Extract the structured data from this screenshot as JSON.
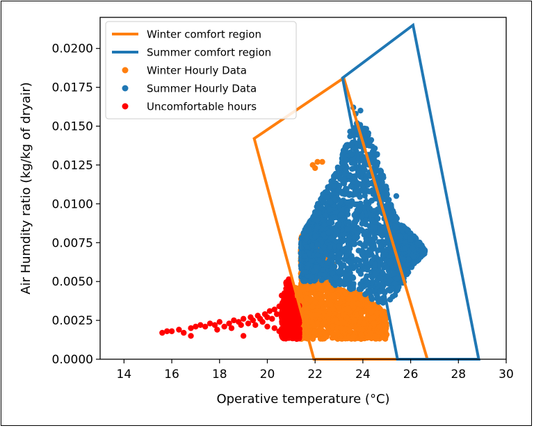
{
  "chart_data": {
    "type": "scatter",
    "title": "",
    "xlabel": "Operative temperature (",
    "xlabel_unit": "°C",
    "xlabel_close": ")",
    "ylabel": "Air Humdity ratio (kg/kg of dryair)",
    "xlim": [
      13,
      30
    ],
    "ylim": [
      0,
      0.022
    ],
    "xticks": [
      "14",
      "16",
      "18",
      "20",
      "22",
      "24",
      "26",
      "28",
      "30"
    ],
    "yticks": [
      "0.0000",
      "0.0025",
      "0.0050",
      "0.0075",
      "0.0100",
      "0.0125",
      "0.0150",
      "0.0175",
      "0.0200"
    ],
    "grid": false,
    "legend_position": "top-left",
    "colors": {
      "winter": "#ff7f0e",
      "summer": "#1f77b4",
      "uncomfortable": "#ff0000"
    },
    "series": [
      {
        "name": "Winter comfort region",
        "kind": "polygon",
        "points": [
          [
            19.45,
            0.0142
          ],
          [
            23.2,
            0.0181
          ],
          [
            26.7,
            0.0
          ],
          [
            21.95,
            0.0
          ]
        ]
      },
      {
        "name": "Summer comfort region",
        "kind": "polygon",
        "points": [
          [
            23.15,
            0.0181
          ],
          [
            26.1,
            0.0215
          ],
          [
            28.85,
            0.0
          ],
          [
            25.45,
            0.0
          ]
        ]
      },
      {
        "name": "Winter Hourly Data",
        "kind": "scatter",
        "regions": [
          {
            "x": [
              21.0,
              25.0
            ],
            "y_top_at": [
              [
                21.0,
                0.0045
              ],
              [
                22.0,
                0.0052
              ],
              [
                23.0,
                0.0045
              ],
              [
                24.0,
                0.0042
              ],
              [
                25.0,
                0.003
              ]
            ],
            "y_bottom": 0.0013
          },
          {
            "x": [
              21.4,
              22.8
            ],
            "y_top_at": [
              [
                21.4,
                0.0082
              ],
              [
                22.0,
                0.008
              ],
              [
                22.8,
                0.006
              ]
            ],
            "y_bottom": 0.0045
          }
        ],
        "extra_points": [
          [
            21.9,
            0.0125
          ],
          [
            22.1,
            0.0127
          ],
          [
            22.3,
            0.0127
          ],
          [
            22.0,
            0.0123
          ],
          [
            24.7,
            0.0021
          ],
          [
            24.9,
            0.0025
          ],
          [
            24.6,
            0.003
          ],
          [
            24.8,
            0.0018
          ]
        ]
      },
      {
        "name": "Summer Hourly Data",
        "kind": "scatter",
        "profile": [
          [
            21.4,
            0.005,
            0.0078
          ],
          [
            21.8,
            0.005,
            0.009
          ],
          [
            22.2,
            0.005,
            0.0103
          ],
          [
            22.6,
            0.005,
            0.0113
          ],
          [
            23.0,
            0.0045,
            0.0125
          ],
          [
            23.4,
            0.0045,
            0.0145
          ],
          [
            23.8,
            0.0042,
            0.0155
          ],
          [
            24.1,
            0.004,
            0.015
          ],
          [
            24.4,
            0.0037,
            0.014
          ],
          [
            24.7,
            0.0035,
            0.0128
          ],
          [
            25.0,
            0.0036,
            0.011
          ],
          [
            25.3,
            0.004,
            0.0095
          ],
          [
            25.6,
            0.0045,
            0.0087
          ],
          [
            25.9,
            0.0055,
            0.0083
          ],
          [
            26.1,
            0.006,
            0.008
          ],
          [
            26.4,
            0.0065,
            0.0075
          ],
          [
            26.6,
            0.0068,
            0.007
          ]
        ],
        "extra_points": [
          [
            23.6,
            0.0162
          ],
          [
            23.7,
            0.0158
          ],
          [
            23.9,
            0.016
          ],
          [
            24.6,
            0.0132
          ],
          [
            25.4,
            0.0105
          ],
          [
            26.5,
            0.0068
          ],
          [
            26.3,
            0.0075
          ],
          [
            26.0,
            0.0081
          ],
          [
            25.7,
            0.0064
          ]
        ]
      },
      {
        "name": "Uncomfortable hours",
        "kind": "scatter",
        "points": [
          [
            15.6,
            0.0017
          ],
          [
            15.8,
            0.0018
          ],
          [
            16.0,
            0.0018
          ],
          [
            16.3,
            0.0019
          ],
          [
            16.5,
            0.0017
          ],
          [
            16.8,
            0.002
          ],
          [
            16.8,
            0.0015
          ],
          [
            17.0,
            0.0021
          ],
          [
            17.2,
            0.0022
          ],
          [
            17.4,
            0.0021
          ],
          [
            17.6,
            0.0023
          ],
          [
            17.8,
            0.0022
          ],
          [
            17.9,
            0.0019
          ],
          [
            18.0,
            0.0024
          ],
          [
            18.2,
            0.0021
          ],
          [
            18.4,
            0.0023
          ],
          [
            18.5,
            0.002
          ],
          [
            18.6,
            0.0025
          ],
          [
            18.8,
            0.0024
          ],
          [
            18.9,
            0.0022
          ],
          [
            19.0,
            0.0026
          ],
          [
            19.0,
            0.0015
          ],
          [
            19.2,
            0.0023
          ],
          [
            19.3,
            0.0027
          ],
          [
            19.4,
            0.0025
          ],
          [
            19.5,
            0.0022
          ],
          [
            19.6,
            0.0028
          ],
          [
            19.7,
            0.0026
          ],
          [
            19.8,
            0.0024
          ],
          [
            19.9,
            0.0029
          ],
          [
            20.0,
            0.0027
          ],
          [
            20.0,
            0.0021
          ],
          [
            20.1,
            0.0031
          ],
          [
            20.2,
            0.0026
          ],
          [
            20.3,
            0.0032
          ],
          [
            20.3,
            0.002
          ],
          [
            20.4,
            0.0029
          ],
          [
            20.5,
            0.0034
          ],
          [
            20.5,
            0.0018
          ],
          [
            20.6,
            0.0027
          ],
          [
            20.6,
            0.0041
          ]
        ],
        "cluster": {
          "x": [
            20.6,
            21.35
          ],
          "y": [
            0.0013,
            0.0052
          ]
        }
      }
    ]
  }
}
